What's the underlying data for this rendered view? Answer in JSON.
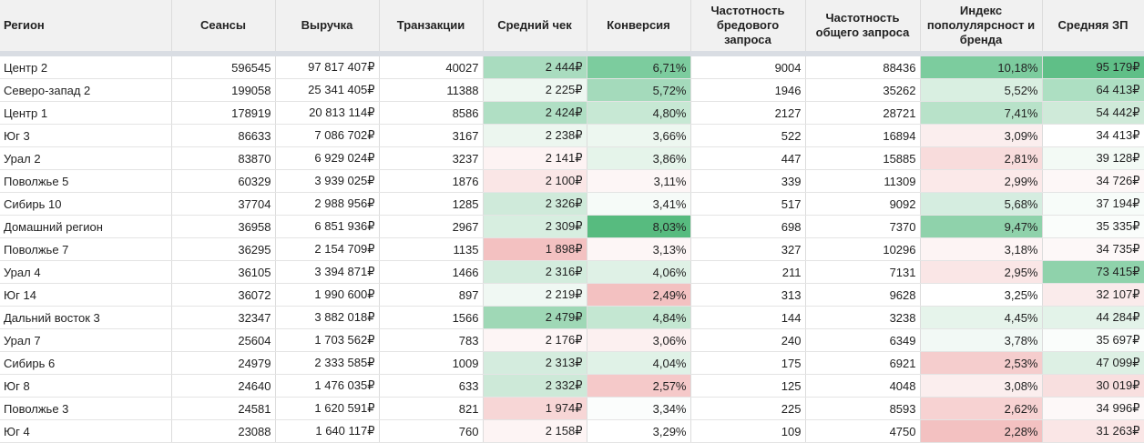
{
  "headers": [
    "Регион",
    "Сеансы",
    "Выручка",
    "Транзакции",
    "Средний чек",
    "Конверсия",
    "Частотность бредового запроса",
    "Частотность общего запроса",
    "Индекс пополулярсност и бренда",
    "Средняя ЗП"
  ],
  "rows": [
    {
      "region": "Центр 2",
      "sessions": "596545",
      "revenue": "97 817 407₽",
      "transactions": "40027",
      "avg_check": "2 444₽",
      "conversion": "6,71%",
      "freq_bad": "9004",
      "freq_general": "88436",
      "brand_index": "10,18%",
      "avg_salary": "95 179₽",
      "fills": {
        "avg_check": "#a9dcbf",
        "conversion": "#7ccc9e",
        "brand_index": "#7ccc9e",
        "avg_salary": "#5fbf87"
      }
    },
    {
      "region": "Северо-запад 2",
      "sessions": "199058",
      "revenue": "25 341 405₽",
      "transactions": "11388",
      "avg_check": "2 225₽",
      "conversion": "5,72%",
      "freq_bad": "1946",
      "freq_general": "35262",
      "brand_index": "5,52%",
      "avg_salary": "64 413₽",
      "fills": {
        "avg_check": "#eef7f1",
        "conversion": "#a4dabb",
        "brand_index": "#d9efe1",
        "avg_salary": "#addfc2"
      }
    },
    {
      "region": "Центр 1",
      "sessions": "178919",
      "revenue": "20 813 114₽",
      "transactions": "8586",
      "avg_check": "2 424₽",
      "conversion": "4,80%",
      "freq_bad": "2127",
      "freq_general": "28721",
      "brand_index": "7,41%",
      "avg_salary": "54 442₽",
      "fills": {
        "avg_check": "#b0dfc4",
        "conversion": "#c7e8d4",
        "brand_index": "#b8e2c9",
        "avg_salary": "#cfead9"
      }
    },
    {
      "region": "Юг 3",
      "sessions": "86633",
      "revenue": "7 086 702₽",
      "transactions": "3167",
      "avg_check": "2 238₽",
      "conversion": "3,66%",
      "freq_bad": "522",
      "freq_general": "16894",
      "brand_index": "3,09%",
      "avg_salary": "34 413₽",
      "fills": {
        "avg_check": "#ecf6ef",
        "conversion": "#edf7f0",
        "brand_index": "#fbeeee",
        "avg_salary": "#ffffff"
      }
    },
    {
      "region": "Урал 2",
      "sessions": "83870",
      "revenue": "6 929 024₽",
      "transactions": "3237",
      "avg_check": "2 141₽",
      "conversion": "3,86%",
      "freq_bad": "447",
      "freq_general": "15885",
      "brand_index": "2,81%",
      "avg_salary": "39 128₽",
      "fills": {
        "avg_check": "#fdf3f3",
        "conversion": "#e5f4ea",
        "brand_index": "#f8dcdc",
        "avg_salary": "#f3faf5"
      }
    },
    {
      "region": "Поволжье 5",
      "sessions": "60329",
      "revenue": "3 939 025₽",
      "transactions": "1876",
      "avg_check": "2 100₽",
      "conversion": "3,11%",
      "freq_bad": "339",
      "freq_general": "11309",
      "brand_index": "2,99%",
      "avg_salary": "34 726₽",
      "fills": {
        "avg_check": "#fae6e6",
        "conversion": "#fdf6f6",
        "brand_index": "#fbe9e9",
        "avg_salary": "#fdf7f7"
      }
    },
    {
      "region": "Сибирь 10",
      "sessions": "37704",
      "revenue": "2 988 956₽",
      "transactions": "1285",
      "avg_check": "2 326₽",
      "conversion": "3,41%",
      "freq_bad": "517",
      "freq_general": "9092",
      "brand_index": "5,68%",
      "avg_salary": "37 194₽",
      "fills": {
        "avg_check": "#cfeada",
        "conversion": "#f6fbf8",
        "brand_index": "#d5ede0",
        "avg_salary": "#f7fcf9"
      }
    },
    {
      "region": "Домашний регион",
      "sessions": "36958",
      "revenue": "6 851 936₽",
      "transactions": "2967",
      "avg_check": "2 309₽",
      "conversion": "8,03%",
      "freq_bad": "698",
      "freq_general": "7370",
      "brand_index": "9,47%",
      "avg_salary": "35 335₽",
      "fills": {
        "avg_check": "#d7eee0",
        "conversion": "#57bb7f",
        "brand_index": "#8fd2ab",
        "avg_salary": "#fafdfb"
      }
    },
    {
      "region": "Поволжье 7",
      "sessions": "36295",
      "revenue": "2 154 709₽",
      "transactions": "1135",
      "avg_check": "1 898₽",
      "conversion": "3,13%",
      "freq_bad": "327",
      "freq_general": "10296",
      "brand_index": "3,18%",
      "avg_salary": "34 735₽",
      "fills": {
        "avg_check": "#f3c1c1",
        "conversion": "#fdf6f6",
        "brand_index": "#fdf4f4",
        "avg_salary": "#fdf8f8"
      }
    },
    {
      "region": "Урал 4",
      "sessions": "36105",
      "revenue": "3 394 871₽",
      "transactions": "1466",
      "avg_check": "2 316₽",
      "conversion": "4,06%",
      "freq_bad": "211",
      "freq_general": "7131",
      "brand_index": "2,95%",
      "avg_salary": "73 415₽",
      "fills": {
        "avg_check": "#d3ecdd",
        "conversion": "#dff1e6",
        "brand_index": "#fae6e6",
        "avg_salary": "#8fd2ab"
      }
    },
    {
      "region": "Юг 14",
      "sessions": "36072",
      "revenue": "1 990 600₽",
      "transactions": "897",
      "avg_check": "2 219₽",
      "conversion": "2,49%",
      "freq_bad": "313",
      "freq_general": "9628",
      "brand_index": "3,25%",
      "avg_salary": "32 107₽",
      "fills": {
        "avg_check": "#f0f8f3",
        "conversion": "#f3c1c1",
        "brand_index": "#ffffff",
        "avg_salary": "#faebeb"
      }
    },
    {
      "region": "Дальний восток 3",
      "sessions": "32347",
      "revenue": "3 882 018₽",
      "transactions": "1566",
      "avg_check": "2 479₽",
      "conversion": "4,84%",
      "freq_bad": "144",
      "freq_general": "3238",
      "brand_index": "4,45%",
      "avg_salary": "44 284₽",
      "fills": {
        "avg_check": "#9fd8b6",
        "conversion": "#c4e7d2",
        "brand_index": "#e6f4eb",
        "avg_salary": "#e3f3e9"
      }
    },
    {
      "region": "Урал 7",
      "sessions": "25604",
      "revenue": "1 703 562₽",
      "transactions": "783",
      "avg_check": "2 176₽",
      "conversion": "3,06%",
      "freq_bad": "240",
      "freq_general": "6349",
      "brand_index": "3,78%",
      "avg_salary": "35 697₽",
      "fills": {
        "avg_check": "#fdf5f5",
        "conversion": "#fcf0f0",
        "brand_index": "#f2f9f5",
        "avg_salary": "#fafdfb"
      }
    },
    {
      "region": "Сибирь 6",
      "sessions": "24979",
      "revenue": "2 333 585₽",
      "transactions": "1009",
      "avg_check": "2 313₽",
      "conversion": "4,04%",
      "freq_bad": "175",
      "freq_general": "6921",
      "brand_index": "2,53%",
      "avg_salary": "47 099₽",
      "fills": {
        "avg_check": "#d4ecde",
        "conversion": "#e0f2e7",
        "brand_index": "#f5cdcd",
        "avg_salary": "#ddf0e4"
      }
    },
    {
      "region": "Юг 8",
      "sessions": "24640",
      "revenue": "1 476 035₽",
      "transactions": "633",
      "avg_check": "2 332₽",
      "conversion": "2,57%",
      "freq_bad": "125",
      "freq_general": "4048",
      "brand_index": "3,08%",
      "avg_salary": "30 019₽",
      "fills": {
        "avg_check": "#cde9d8",
        "conversion": "#f5c9c9",
        "brand_index": "#fbeeee",
        "avg_salary": "#f8dfdf"
      }
    },
    {
      "region": "Поволжье 3",
      "sessions": "24581",
      "revenue": "1 620 591₽",
      "transactions": "821",
      "avg_check": "1 974₽",
      "conversion": "3,34%",
      "freq_bad": "225",
      "freq_general": "8593",
      "brand_index": "2,62%",
      "avg_salary": "34 996₽",
      "fills": {
        "avg_check": "#f7d6d6",
        "conversion": "#fbfdfc",
        "brand_index": "#f7d2d2",
        "avg_salary": "#fdf8f8"
      }
    },
    {
      "region": "Юг 4",
      "sessions": "23088",
      "revenue": "1 640 117₽",
      "transactions": "760",
      "avg_check": "2 158₽",
      "conversion": "3,29%",
      "freq_bad": "109",
      "freq_general": "4750",
      "brand_index": "2,28%",
      "avg_salary": "31 263₽",
      "fills": {
        "avg_check": "#fdf4f4",
        "conversion": "#ffffff",
        "brand_index": "#f3c1c1",
        "avg_salary": "#fae6e6"
      }
    }
  ]
}
